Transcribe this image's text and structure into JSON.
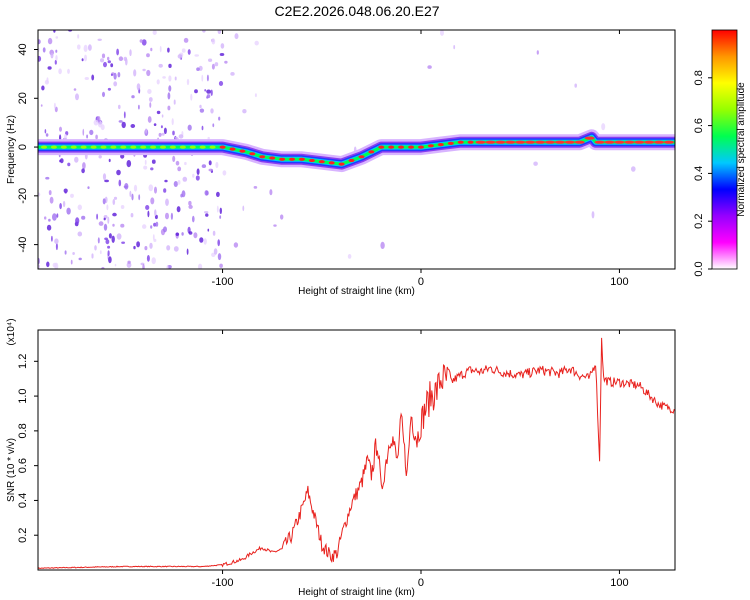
{
  "figure": {
    "title": "C2E2.2026.048.06.20.E27"
  },
  "chart_data": [
    {
      "type": "heatmap",
      "xlabel": "Height of straight line (km)",
      "ylabel": "Frequency (Hz)",
      "xlim": [
        -193,
        128
      ],
      "ylim": [
        -50,
        48
      ],
      "x_ticks": [
        -100,
        0,
        100
      ],
      "y_ticks": [
        -40,
        -20,
        0,
        20,
        40
      ],
      "grid": false,
      "ridge": {
        "x": [
          -193,
          -160,
          -130,
          -100,
          -88,
          -80,
          -70,
          -60,
          -50,
          -40,
          -30,
          -20,
          -10,
          0,
          10,
          20,
          40,
          60,
          80,
          86,
          88,
          92,
          100,
          128
        ],
        "y": [
          0,
          0,
          0,
          0,
          -2,
          -4,
          -5,
          -5,
          -6,
          -7,
          -4,
          0,
          0,
          0,
          1,
          2,
          2,
          2,
          2,
          4,
          2,
          2,
          2,
          2
        ]
      },
      "colorbar": {
        "label": "Normalized spectral amplitude",
        "range": [
          0,
          1
        ],
        "ticks": [
          0.0,
          0.2,
          0.4,
          0.6,
          0.8
        ],
        "colors": [
          "#ffffff",
          "#ff00ff",
          "#9600ff",
          "#0000ff",
          "#00c8ff",
          "#00ff50",
          "#96ff00",
          "#ffff00",
          "#ff9600",
          "#ff0000"
        ]
      }
    },
    {
      "type": "line",
      "xlabel": "Height of straight line (km)",
      "ylabel": "SNR (10 * v/v)",
      "scale_label": "(x10⁴)",
      "xlim": [
        -193,
        128
      ],
      "ylim": [
        0,
        1.38
      ],
      "x_ticks": [
        -100,
        0,
        100
      ],
      "y_ticks": [
        0.2,
        0.4,
        0.6,
        0.8,
        1.0,
        1.2
      ],
      "grid": false,
      "series": [
        {
          "color": "#e8221e",
          "x": [
            -193,
            -150,
            -110,
            -100,
            -90,
            -85,
            -80,
            -75,
            -70,
            -65,
            -60,
            -57,
            -53,
            -50,
            -47,
            -45,
            -42,
            -40,
            -35,
            -30,
            -27,
            -25,
            -22,
            -20,
            -18,
            -15,
            -12,
            -10,
            -7,
            -5,
            -2,
            0,
            3,
            5,
            8,
            10,
            15,
            20,
            25,
            30,
            35,
            40,
            50,
            60,
            70,
            75,
            80,
            85,
            88,
            90,
            91,
            92,
            95,
            100,
            110,
            120,
            128
          ],
          "y": [
            0.01,
            0.02,
            0.02,
            0.03,
            0.06,
            0.1,
            0.13,
            0.1,
            0.12,
            0.2,
            0.35,
            0.45,
            0.28,
            0.15,
            0.1,
            0.08,
            0.1,
            0.2,
            0.38,
            0.5,
            0.62,
            0.55,
            0.75,
            0.45,
            0.6,
            0.8,
            0.62,
            0.85,
            0.55,
            0.9,
            0.75,
            0.85,
            0.95,
            1.0,
            1.03,
            1.1,
            1.08,
            1.12,
            1.15,
            1.14,
            1.16,
            1.14,
            1.12,
            1.15,
            1.13,
            1.16,
            1.12,
            1.1,
            1.2,
            0.62,
            1.35,
            1.1,
            1.08,
            1.08,
            1.06,
            0.95,
            0.92
          ]
        }
      ]
    }
  ]
}
